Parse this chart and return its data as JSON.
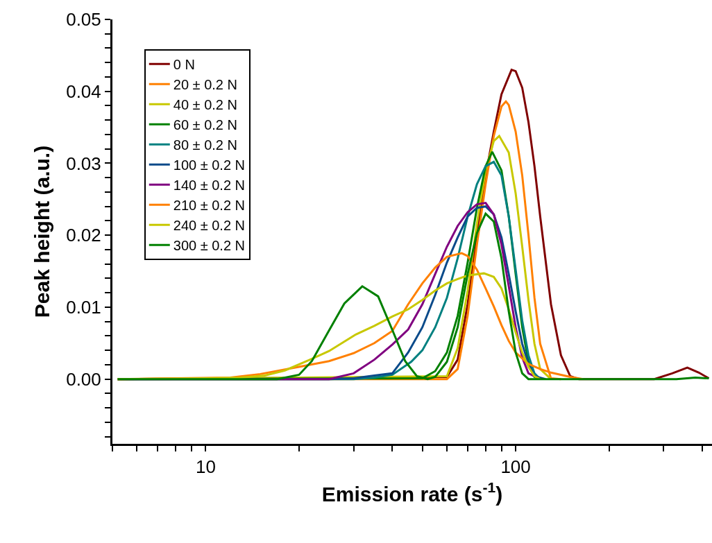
{
  "chart_data": {
    "type": "line",
    "xlabel": "Emission rate (s$^{-1}$)",
    "ylabel": "Peak height (a.u.)",
    "log": "x",
    "legend": "top left",
    "marker": "none",
    "line_style": "solid",
    "xlim": [
      5,
      430
    ],
    "ylim": [
      -0.009,
      0.05
    ],
    "xticks": [
      {
        "value": 5,
        "label": null
      },
      {
        "value": 6,
        "label": null
      },
      {
        "value": 7,
        "label": null
      },
      {
        "value": 8,
        "label": null
      },
      {
        "value": 9,
        "label": null
      },
      10,
      {
        "value": 20,
        "label": null
      },
      {
        "value": 30,
        "label": null
      },
      {
        "value": 40,
        "label": null
      },
      {
        "value": 50,
        "label": null
      },
      {
        "value": 60,
        "label": null
      },
      {
        "value": 70,
        "label": null
      },
      {
        "value": 80,
        "label": null
      },
      {
        "value": 90,
        "label": null
      },
      100,
      {
        "value": 200,
        "label": null
      },
      {
        "value": 300,
        "label": null
      },
      {
        "value": 400,
        "label": null
      }
    ],
    "yticks": [
      {
        "value": -0.008,
        "label": null
      },
      {
        "value": -0.006,
        "label": null
      },
      {
        "value": -0.004,
        "label": null
      },
      {
        "value": -0.002,
        "label": null
      },
      {
        "value": 0,
        "label": "0.00"
      },
      {
        "value": 0.002,
        "label": null
      },
      {
        "value": 0.004,
        "label": null
      },
      {
        "value": 0.006,
        "label": null
      },
      {
        "value": 0.008,
        "label": null
      },
      0.01,
      {
        "value": 0.012,
        "label": null
      },
      {
        "value": 0.014,
        "label": null
      },
      {
        "value": 0.016,
        "label": null
      },
      {
        "value": 0.018,
        "label": null
      },
      0.02,
      {
        "value": 0.022,
        "label": null
      },
      {
        "value": 0.024,
        "label": null
      },
      {
        "value": 0.026,
        "label": null
      },
      {
        "value": 0.028,
        "label": null
      },
      0.03,
      {
        "value": 0.032,
        "label": null
      },
      {
        "value": 0.034,
        "label": null
      },
      {
        "value": 0.036,
        "label": null
      },
      {
        "value": 0.038,
        "label": null
      },
      0.04,
      {
        "value": 0.042,
        "label": null
      },
      {
        "value": 0.044,
        "label": null
      },
      {
        "value": 0.046,
        "label": null
      },
      {
        "value": 0.048,
        "label": null
      },
      0.05
    ],
    "series": [
      {
        "name": "0 N",
        "color": "#800000",
        "x": [
          5.2,
          60,
          65,
          70,
          75,
          80,
          85,
          90,
          97,
          100,
          105,
          110,
          115,
          120,
          130,
          140,
          150,
          160,
          280,
          320,
          358,
          390,
          420
        ],
        "values": [
          0,
          0.0003,
          0.0027,
          0.0104,
          0.02,
          0.0283,
          0.0344,
          0.0396,
          0.043,
          0.0428,
          0.0405,
          0.0357,
          0.0296,
          0.0226,
          0.0104,
          0.0033,
          0.0004,
          0,
          0,
          0.0008,
          0.0016,
          0.0009,
          0.0001
        ]
      },
      {
        "name": "20 ± 0.2 N",
        "color": "#ff8000",
        "x": [
          5.2,
          60,
          65,
          70,
          75,
          80,
          85,
          90,
          93,
          95,
          100,
          105,
          110,
          115,
          120,
          130,
          140
        ],
        "values": [
          0,
          0,
          0.0014,
          0.0088,
          0.0187,
          0.0271,
          0.0338,
          0.0379,
          0.0386,
          0.0381,
          0.0344,
          0.0283,
          0.02,
          0.0113,
          0.0049,
          0.0001,
          0
        ]
      },
      {
        "name": "40 ± 0.2 N",
        "color": "#c8c800",
        "x": [
          5.2,
          60,
          65,
          70,
          75,
          80,
          85,
          88.5,
          95,
          100,
          105,
          110,
          115,
          120,
          130
        ],
        "values": [
          0,
          0.0004,
          0.0043,
          0.0123,
          0.0216,
          0.029,
          0.0331,
          0.0338,
          0.0315,
          0.0258,
          0.0184,
          0.011,
          0.0049,
          0.0014,
          0
        ]
      },
      {
        "name": "60 ± 0.2 N",
        "color": "#008000",
        "x": [
          5.2,
          50,
          55,
          60,
          65,
          70,
          75,
          80,
          84,
          90,
          95,
          100,
          105,
          110,
          115,
          120
        ],
        "values": [
          0,
          0.0001,
          0.0011,
          0.0037,
          0.0088,
          0.0162,
          0.0238,
          0.0296,
          0.0316,
          0.029,
          0.0226,
          0.0146,
          0.0072,
          0.0024,
          0.0003,
          0
        ]
      },
      {
        "name": "80 ± 0.2 N",
        "color": "#008080",
        "x": [
          5.2,
          30,
          35,
          40,
          46,
          50,
          55,
          60,
          65,
          70,
          75,
          80,
          85,
          90,
          95,
          100,
          105,
          110,
          115,
          120
        ],
        "values": [
          0,
          0,
          0.0002,
          0.0006,
          0.0024,
          0.004,
          0.0072,
          0.0113,
          0.0168,
          0.0226,
          0.0271,
          0.0296,
          0.0302,
          0.0283,
          0.0226,
          0.0152,
          0.0081,
          0.0033,
          0.0008,
          0
        ]
      },
      {
        "name": "100 ± 0.2 N",
        "color": "#0a4a8a",
        "x": [
          5.2,
          25,
          30,
          35,
          40,
          45,
          50,
          55,
          60,
          65,
          70,
          75,
          80,
          85,
          90,
          95,
          100,
          105,
          110,
          115,
          125
        ],
        "values": [
          0,
          0,
          0.0001,
          0.0005,
          0.0008,
          0.0037,
          0.0072,
          0.0117,
          0.0162,
          0.0197,
          0.0226,
          0.0238,
          0.024,
          0.0229,
          0.0197,
          0.0146,
          0.0094,
          0.0049,
          0.0021,
          0.0004,
          0
        ]
      },
      {
        "name": "140 ± 0.2 N",
        "color": "#800080",
        "x": [
          5.2,
          25,
          30,
          35,
          40,
          45,
          50,
          55,
          60,
          65,
          70,
          75,
          80,
          85,
          90,
          95,
          100,
          105,
          110,
          120
        ],
        "values": [
          0,
          0,
          0.0008,
          0.0027,
          0.0048,
          0.0069,
          0.0104,
          0.0146,
          0.0184,
          0.0213,
          0.0232,
          0.0243,
          0.0245,
          0.0229,
          0.0187,
          0.0129,
          0.0072,
          0.003,
          0.0008,
          0
        ]
      },
      {
        "name": "210 ± 0.2 N",
        "color": "#ff8000",
        "x": [
          5.2,
          8,
          12,
          15,
          20,
          25,
          30,
          35,
          40,
          45,
          50,
          55,
          60,
          67,
          70,
          75,
          80,
          85,
          90,
          95,
          100,
          110,
          120,
          130,
          140,
          150,
          165
        ],
        "values": [
          0,
          0.0001,
          0.0002,
          0.0007,
          0.0017,
          0.0025,
          0.0036,
          0.005,
          0.0067,
          0.0104,
          0.0133,
          0.0155,
          0.017,
          0.0175,
          0.0171,
          0.0152,
          0.0126,
          0.0101,
          0.0075,
          0.0053,
          0.0037,
          0.0021,
          0.0014,
          0.0009,
          0.0006,
          0.0003,
          0
        ]
      },
      {
        "name": "240 ± 0.2 N",
        "color": "#c8c800",
        "x": [
          5.2,
          10,
          13,
          15.5,
          18,
          21.7,
          25,
          30.5,
          35,
          40,
          45,
          50,
          55,
          60,
          65,
          70,
          79,
          85,
          90,
          95,
          100,
          105,
          110,
          115,
          120
        ],
        "values": [
          0,
          0.0001,
          0.0002,
          0.0005,
          0.0012,
          0.0027,
          0.0039,
          0.0062,
          0.0074,
          0.0087,
          0.0097,
          0.011,
          0.0123,
          0.0133,
          0.0139,
          0.0144,
          0.0147,
          0.0142,
          0.0126,
          0.0097,
          0.0065,
          0.0037,
          0.0017,
          0.0004,
          0
        ]
      },
      {
        "name": "300 ± 0.2 N",
        "color": "#008000",
        "x": [
          5.2,
          17,
          20,
          22,
          24.8,
          28,
          32,
          36,
          40.3,
          44,
          48,
          52,
          55,
          60,
          65,
          70,
          75,
          80,
          85,
          90,
          95,
          100,
          105,
          110,
          330,
          380,
          420
        ],
        "values": [
          0,
          0,
          0.0006,
          0.0025,
          0.0065,
          0.0105,
          0.0129,
          0.0115,
          0.0065,
          0.0025,
          0.0004,
          0,
          0.0003,
          0.0024,
          0.0072,
          0.0146,
          0.0203,
          0.023,
          0.0219,
          0.0168,
          0.0094,
          0.0037,
          0.0008,
          0,
          0,
          0.0002,
          0.0001
        ]
      }
    ]
  }
}
